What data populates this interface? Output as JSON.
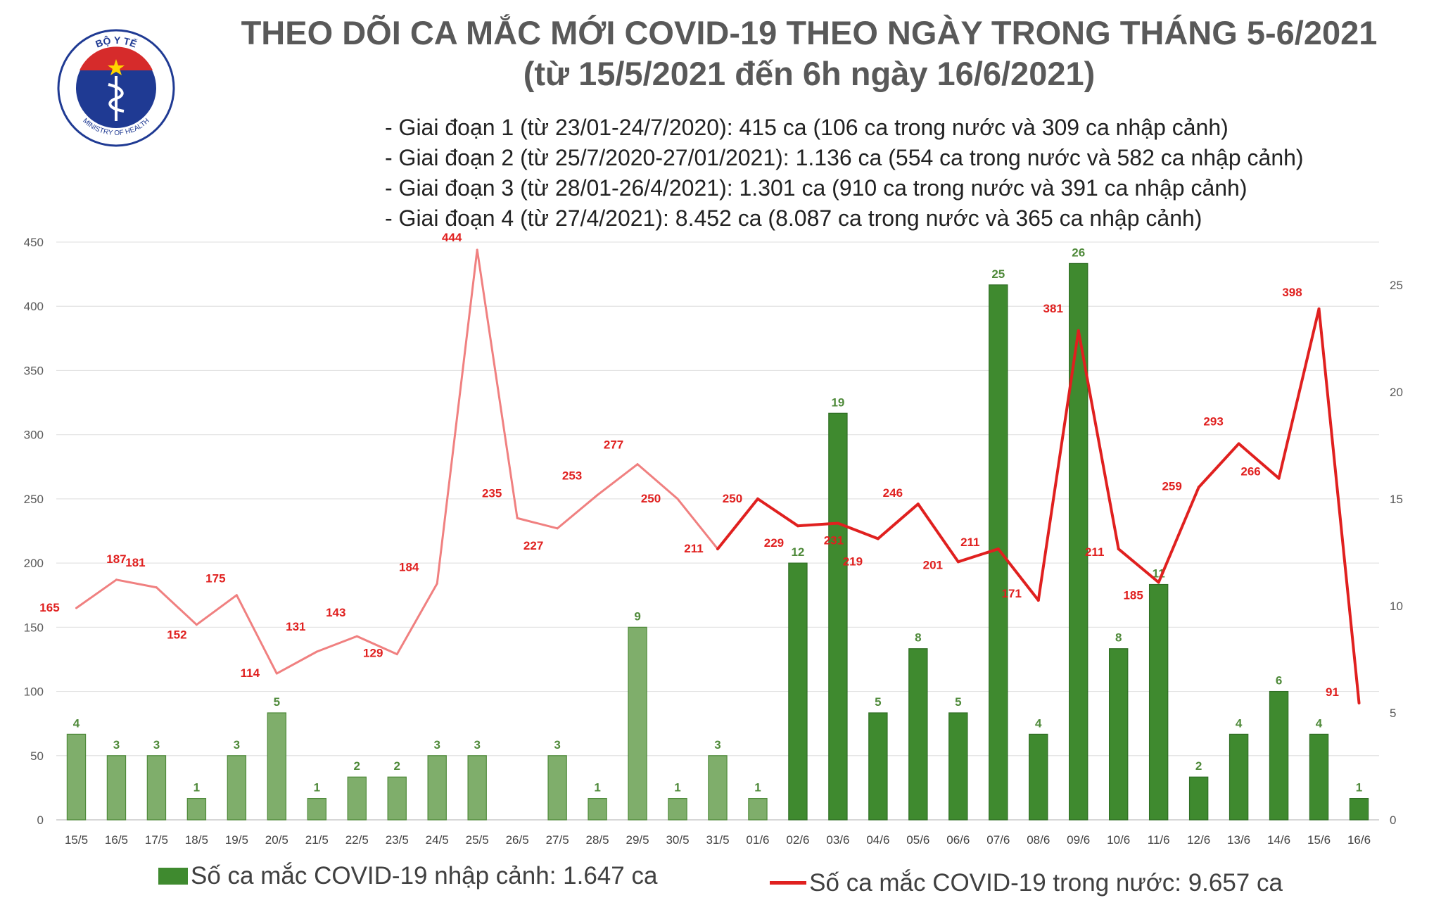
{
  "title": {
    "line1": "THEO DÕI CA MẮC MỚI COVID-19 THEO NGÀY TRONG THÁNG 5-6/2021",
    "line2": "(từ 15/5/2021 đến 6h ngày 16/6/2021)"
  },
  "logo": {
    "top_text": "BỘ Y TẾ",
    "bottom_text": "MINISTRY OF HEALTH",
    "icon": "caduceus-icon"
  },
  "phases": [
    "- Giai đoạn 1 (từ 23/01-24/7/2020): 415 ca (106 ca trong nước và 309 ca nhập cảnh)",
    "- Giai đoạn 2 (từ 25/7/2020-27/01/2021): 1.136 ca (554 ca trong nước và 582 ca nhập cảnh)",
    "- Giai đoạn 3 (từ 28/01-26/4/2021): 1.301 ca (910 ca trong nước và 391 ca nhập cảnh)",
    "- Giai đoạn 4 (từ 27/4/2021): 8.452 ca (8.087 ca trong nước và 365 ca nhập cảnh)"
  ],
  "legend": {
    "imported": "Số ca mắc COVID-19 nhập cảnh: 1.647 ca",
    "domestic": "Số ca mắc COVID-19 trong nước: 9.657 ca"
  },
  "colors": {
    "bar_dark": "#3f8a2f",
    "bar_light": "#7fae6b",
    "line_dark": "#e0201f",
    "line_light": "#f08080",
    "label_red": "#e0201f",
    "label_green": "#4f8a3a"
  },
  "chart_data": {
    "type": "bar+line",
    "categories": [
      "15/5",
      "16/5",
      "17/5",
      "18/5",
      "19/5",
      "20/5",
      "21/5",
      "22/5",
      "23/5",
      "24/5",
      "25/5",
      "26/5",
      "27/5",
      "28/5",
      "29/5",
      "30/5",
      "31/5",
      "01/6",
      "02/6",
      "03/6",
      "04/6",
      "05/6",
      "06/6",
      "07/6",
      "08/6",
      "09/6",
      "10/6",
      "11/6",
      "12/6",
      "13/6",
      "14/6",
      "15/6",
      "16/6"
    ],
    "series": [
      {
        "name": "Số ca mắc COVID-19 nhập cảnh: 1.647 ca",
        "type": "bar",
        "axis": "right",
        "values": [
          4,
          3,
          3,
          1,
          3,
          5,
          1,
          2,
          2,
          3,
          3,
          0,
          3,
          1,
          9,
          1,
          3,
          1,
          12,
          19,
          5,
          8,
          5,
          25,
          4,
          26,
          8,
          11,
          2,
          4,
          6,
          4,
          1
        ],
        "labels": [
          "4",
          "3",
          "3",
          "1",
          "3",
          "5",
          "1",
          "2",
          "2",
          "3",
          "3",
          "",
          "3",
          "1",
          "9",
          "1",
          "3",
          "1",
          "12",
          "19",
          "5",
          "8",
          "5",
          "25",
          "4",
          "26",
          "8",
          "11",
          "2",
          "4",
          "6",
          "4",
          "1"
        ]
      },
      {
        "name": "Số ca mắc COVID-19 trong nước: 9.657 ca",
        "type": "line",
        "axis": "left",
        "values": [
          165,
          187,
          181,
          152,
          175,
          114,
          131,
          143,
          129,
          184,
          444,
          235,
          227,
          253,
          277,
          250,
          211,
          250,
          229,
          231,
          219,
          246,
          201,
          211,
          171,
          381,
          211,
          185,
          259,
          293,
          266,
          398,
          91
        ],
        "labels": [
          "165",
          "187",
          "181",
          "152",
          "175",
          "114",
          "131",
          "143",
          "129",
          "184",
          "444",
          "235",
          "227",
          "253",
          "277",
          "250",
          "211",
          "250",
          "229",
          "231",
          "219",
          "246",
          "201",
          "211",
          "171",
          "381",
          "211",
          "185",
          "259",
          "293",
          "266",
          "398",
          "91"
        ]
      }
    ],
    "y_left": {
      "min": 0,
      "max": 450,
      "ticks": [
        "0",
        "50",
        "100",
        "150",
        "200",
        "250",
        "300",
        "350",
        "400",
        "450"
      ]
    },
    "y_right": {
      "min": 0,
      "max": 27,
      "ticks": [
        "0",
        "5",
        "10",
        "15",
        "20",
        "25"
      ]
    },
    "grid": true,
    "legend_position": "bottom"
  }
}
